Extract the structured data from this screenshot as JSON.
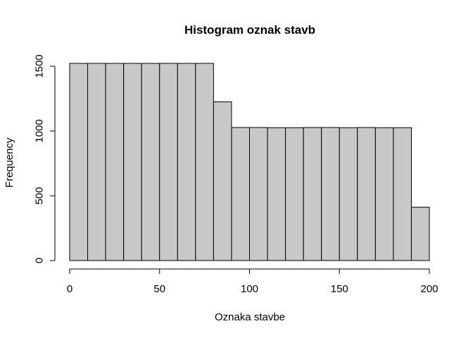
{
  "chart_data": {
    "type": "bar",
    "subtype": "histogram",
    "title": "Histogram oznak stavb",
    "xlabel": "Oznaka stavbe",
    "ylabel": "Frequency",
    "bins": [
      [
        0,
        10
      ],
      [
        10,
        20
      ],
      [
        20,
        30
      ],
      [
        30,
        40
      ],
      [
        40,
        50
      ],
      [
        50,
        60
      ],
      [
        60,
        70
      ],
      [
        70,
        80
      ],
      [
        80,
        90
      ],
      [
        90,
        100
      ],
      [
        100,
        110
      ],
      [
        110,
        120
      ],
      [
        120,
        130
      ],
      [
        130,
        140
      ],
      [
        140,
        150
      ],
      [
        150,
        160
      ],
      [
        160,
        170
      ],
      [
        170,
        180
      ],
      [
        180,
        190
      ],
      [
        190,
        200
      ]
    ],
    "values": [
      1522,
      1522,
      1522,
      1522,
      1522,
      1522,
      1522,
      1522,
      1225,
      1027,
      1027,
      1025,
      1025,
      1027,
      1027,
      1025,
      1027,
      1025,
      1025,
      412
    ],
    "xlim": [
      0,
      200
    ],
    "ylim": [
      0,
      1522
    ],
    "x_ticks": [
      0,
      50,
      100,
      150,
      200
    ],
    "x_tick_labels": [
      "0",
      "50",
      "100",
      "150",
      "200"
    ],
    "y_ticks": [
      0,
      500,
      1000,
      1500
    ],
    "y_tick_labels": [
      "0",
      "500",
      "1000",
      "1500"
    ],
    "bar_fill": "#c8c8c8",
    "bar_stroke": "#000000",
    "grid": false,
    "legend": "none"
  }
}
